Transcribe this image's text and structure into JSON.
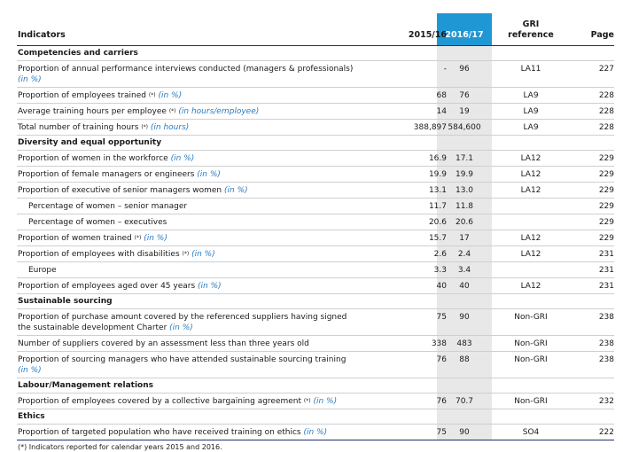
{
  "headers": {
    "indicators": "Indicators",
    "y2015": "2015/16",
    "y2016": "2016/17",
    "gri": "GRI reference",
    "page": "Page"
  },
  "rows": [
    {
      "type": "section",
      "label": "Competencies and carriers"
    },
    {
      "label": "Proportion of annual performance interviews conducted (managers & professionals)",
      "unit": "(in %)",
      "unit_newline": true,
      "y2015": "-",
      "y2016": "96",
      "gri": "LA11",
      "page": "227"
    },
    {
      "label": "Proportion of employees trained",
      "sup": "(*)",
      "unit": "(in %)",
      "y2015": "68",
      "y2016": "76",
      "gri": "LA9",
      "page": "228"
    },
    {
      "label": "Average training hours per employee",
      "sup": "(*)",
      "unit": "(in hours/employee)",
      "y2015": "14",
      "y2016": "19",
      "gri": "LA9",
      "page": "228"
    },
    {
      "label": "Total number of training hours",
      "sup": "(*)",
      "unit": "(in hours)",
      "y2015": "388,897",
      "y2016": "584,600",
      "gri": "LA9",
      "page": "228"
    },
    {
      "type": "section",
      "label": "Diversity and equal opportunity"
    },
    {
      "label": "Proportion of women in the workforce",
      "unit": "(in %)",
      "y2015": "16.9",
      "y2016": "17.1",
      "gri": "LA12",
      "page": "229"
    },
    {
      "label": "Proportion of female managers or engineers",
      "unit": "(in %)",
      "y2015": "19.9",
      "y2016": "19.9",
      "gri": "LA12",
      "page": "229"
    },
    {
      "label": "Proportion of executive of senior managers women",
      "unit": "(in %)",
      "y2015": "13.1",
      "y2016": "13.0",
      "gri": "LA12",
      "page": "229"
    },
    {
      "label": "Percentage of women – senior manager",
      "sub": true,
      "y2015": "11.7",
      "y2016": "11.8",
      "gri": "",
      "page": "229"
    },
    {
      "label": "Percentage of women – executives",
      "sub": true,
      "y2015": "20.6",
      "y2016": "20.6",
      "gri": "",
      "page": "229"
    },
    {
      "label": "Proportion of women trained",
      "sup": "(*)",
      "unit": "(in %)",
      "y2015": "15.7",
      "y2016": "17",
      "gri": "LA12",
      "page": "229"
    },
    {
      "label": "Proportion of employees with disabilities",
      "sup": "(*)",
      "unit": "(in %)",
      "y2015": "2.6",
      "y2016": "2.4",
      "gri": "LA12",
      "page": "231"
    },
    {
      "label": "Europe",
      "sub": true,
      "y2015": "3.3",
      "y2016": "3.4",
      "gri": "",
      "page": "231"
    },
    {
      "label": "Proportion of employees aged over 45 years",
      "unit": "(in %)",
      "y2015": "40",
      "y2016": "40",
      "gri": "LA12",
      "page": "231"
    },
    {
      "type": "section",
      "label": "Sustainable sourcing"
    },
    {
      "label": "Proportion of purchase amount covered by the referenced suppliers having signed the sustainable development Charter",
      "unit": "(in %)",
      "y2015": "75",
      "y2016": "90",
      "gri": "Non-GRI",
      "page": "238"
    },
    {
      "label": "Number of suppliers covered by an assessment less than three years old",
      "y2015": "338",
      "y2016": "483",
      "gri": "Non-GRI",
      "page": "238"
    },
    {
      "label": "Proportion of sourcing managers who have attended sustainable sourcing training",
      "unit": "(in %)",
      "unit_newline": true,
      "y2015": "76",
      "y2016": "88",
      "gri": "Non-GRI",
      "page": "238"
    },
    {
      "type": "section",
      "label": "Labour/Management relations"
    },
    {
      "label": "Proportion of employees covered by a collective bargaining agreement",
      "sup": "(*)",
      "unit": "(in %)",
      "y2015": "76",
      "y2016": "70.7",
      "gri": "Non-GRI",
      "page": "232"
    },
    {
      "type": "section",
      "label": "Ethics"
    },
    {
      "label": "Proportion of targeted population who have received training on ethics",
      "unit": "(in %)",
      "y2015": "75",
      "y2016": "90",
      "gri": "SO4",
      "page": "222"
    }
  ],
  "footnote": "(*)  Indicators reported for calendar years 2015 and 2016."
}
